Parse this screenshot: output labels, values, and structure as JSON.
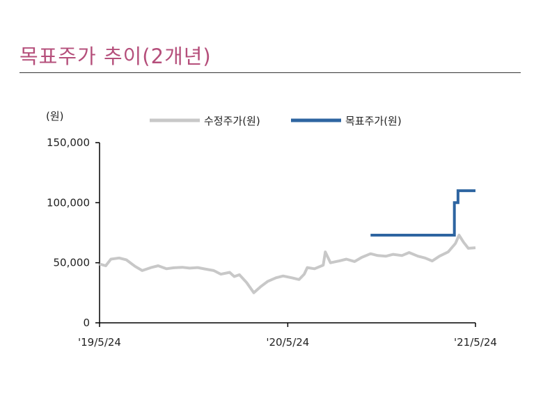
{
  "header": {
    "title": "목표주가 추이(2개년)"
  },
  "chart_data": {
    "type": "line",
    "y_unit_label": "(원)",
    "ylim": [
      0,
      150000
    ],
    "y_ticks": [
      0,
      50000,
      100000,
      150000
    ],
    "y_tick_labels": [
      "0",
      "50,000",
      "100,000",
      "150,000"
    ],
    "x_start": "2019-05-24",
    "x_end": "2021-05-24",
    "x_ticks": [
      "2019-05-24",
      "2020-05-24",
      "2021-05-24"
    ],
    "x_tick_labels": [
      "'19/5/24",
      "'20/5/24",
      "'21/5/24"
    ],
    "grid": false,
    "legend_position": "top",
    "series": [
      {
        "name": "수정주가(원)",
        "color": "#c8c8c8",
        "line": "solid",
        "points": [
          [
            "2019-05-24",
            49000
          ],
          [
            "2019-06-05",
            47500
          ],
          [
            "2019-06-15",
            53000
          ],
          [
            "2019-07-01",
            54000
          ],
          [
            "2019-07-15",
            52500
          ],
          [
            "2019-08-01",
            47000
          ],
          [
            "2019-08-15",
            43500
          ],
          [
            "2019-09-01",
            46000
          ],
          [
            "2019-09-15",
            47500
          ],
          [
            "2019-10-01",
            45000
          ],
          [
            "2019-10-15",
            45800
          ],
          [
            "2019-11-01",
            46200
          ],
          [
            "2019-11-15",
            45500
          ],
          [
            "2019-12-01",
            46000
          ],
          [
            "2019-12-15",
            44800
          ],
          [
            "2020-01-01",
            43500
          ],
          [
            "2020-01-15",
            40500
          ],
          [
            "2020-02-01",
            42000
          ],
          [
            "2020-02-10",
            38500
          ],
          [
            "2020-02-20",
            40000
          ],
          [
            "2020-03-05",
            33500
          ],
          [
            "2020-03-19",
            25000
          ],
          [
            "2020-04-01",
            30000
          ],
          [
            "2020-04-15",
            34500
          ],
          [
            "2020-05-01",
            37500
          ],
          [
            "2020-05-15",
            39000
          ],
          [
            "2020-06-01",
            37500
          ],
          [
            "2020-06-15",
            36000
          ],
          [
            "2020-06-25",
            40500
          ],
          [
            "2020-07-01",
            46000
          ],
          [
            "2020-07-15",
            45000
          ],
          [
            "2020-08-01",
            48000
          ],
          [
            "2020-08-05",
            59000
          ],
          [
            "2020-08-15",
            50000
          ],
          [
            "2020-09-01",
            51500
          ],
          [
            "2020-09-15",
            53000
          ],
          [
            "2020-10-01",
            51000
          ],
          [
            "2020-10-15",
            54500
          ],
          [
            "2020-11-01",
            57500
          ],
          [
            "2020-11-15",
            56000
          ],
          [
            "2020-12-01",
            55500
          ],
          [
            "2020-12-15",
            57000
          ],
          [
            "2021-01-01",
            56000
          ],
          [
            "2021-01-15",
            58500
          ],
          [
            "2021-02-01",
            55500
          ],
          [
            "2021-02-15",
            54000
          ],
          [
            "2021-03-01",
            51500
          ],
          [
            "2021-03-15",
            55500
          ],
          [
            "2021-04-01",
            59000
          ],
          [
            "2021-04-15",
            66000
          ],
          [
            "2021-04-22",
            73000
          ],
          [
            "2021-05-01",
            67000
          ],
          [
            "2021-05-10",
            62000
          ],
          [
            "2021-05-24",
            62500
          ]
        ]
      },
      {
        "name": "목표주가(원)",
        "color": "#2e65a1",
        "line": "step",
        "points": [
          [
            "2020-11-01",
            73000
          ],
          [
            "2021-04-13",
            73000
          ],
          [
            "2021-04-13",
            100000
          ],
          [
            "2021-04-20",
            100000
          ],
          [
            "2021-04-20",
            110000
          ],
          [
            "2021-05-24",
            110000
          ]
        ]
      }
    ]
  }
}
